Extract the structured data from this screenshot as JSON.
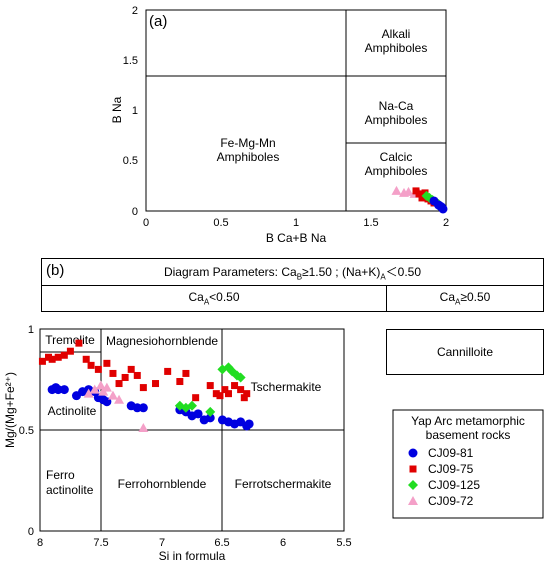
{
  "panel_a": {
    "tag": "(a)",
    "ylabel": "B Na",
    "xlabel": "B Ca+B Na",
    "x_ticks": [
      "0",
      "0.5",
      "1",
      "1.5",
      "2"
    ],
    "y_ticks": [
      "0",
      "0.5",
      "1",
      "1.5",
      "2"
    ],
    "region_fe_l1": "Fe-Mg-Mn",
    "region_fe_l2": "Amphiboles",
    "region_alk_l1": "Alkali",
    "region_alk_l2": "Amphiboles",
    "region_naca_l1": "Na-Ca",
    "region_naca_l2": "Amphiboles",
    "region_calcic_l1": "Calcic",
    "region_calcic_l2": "Amphiboles"
  },
  "panel_b": {
    "tag": "(b)",
    "params_prefix": "Diagram Parameters: Ca",
    "params_sub_b": "B",
    "params_mid": "≥1.50 ; (Na+K)",
    "params_sub_a": "A",
    "params_suffix": "＜0.50",
    "col_left_prefix": "Ca",
    "col_left_sub": "A",
    "col_left_suffix": "<0.50",
    "col_right_prefix": "Ca",
    "col_right_sub": "A",
    "col_right_suffix": "≥0.50",
    "cannilloite": "Cannilloite",
    "ylabel": "Mg/(Mg+Fe²⁺)",
    "xlabel": "Si in formula",
    "x_ticks": [
      "8",
      "7.5",
      "7",
      "6.5",
      "6",
      "5.5"
    ],
    "y_ticks": [
      "0",
      "0.5",
      "1"
    ],
    "region_tremolite": "Tremolite",
    "region_mghbl": "Magnesiohornblende",
    "region_actinolite": "Actinolite",
    "region_tscher": "Tschermakite",
    "region_ferroact_l1": "Ferro",
    "region_ferroact_l2": "actinolite",
    "region_ferrohbl": "Ferrohornblende",
    "region_ferrotscher": "Ferrotschermakite"
  },
  "legend": {
    "title_l1": "Yap Arc metamorphic",
    "title_l2": "basement rocks",
    "items": [
      {
        "label": "CJ09-81",
        "color": "#0000e0",
        "shape": "circle"
      },
      {
        "label": "CJ09-75",
        "color": "#e00000",
        "shape": "square"
      },
      {
        "label": "CJ09-125",
        "color": "#22dd22",
        "shape": "diamond"
      },
      {
        "label": "CJ09-72",
        "color": "#f4a0c8",
        "shape": "triangle"
      }
    ]
  },
  "chart_data": [
    {
      "type": "scatter",
      "title": "(a)",
      "xlabel": "B Ca+B Na",
      "ylabel": "B Na",
      "xlim": [
        0,
        2
      ],
      "ylim": [
        0,
        2
      ],
      "series": [
        {
          "name": "CJ09-72",
          "x": [
            1.67,
            1.72,
            1.75,
            1.79,
            1.82
          ],
          "y": [
            0.2,
            0.18,
            0.19,
            0.17,
            0.18
          ]
        },
        {
          "name": "CJ09-75",
          "x": [
            1.8,
            1.82,
            1.85,
            1.88,
            1.9,
            1.86,
            1.92,
            1.84
          ],
          "y": [
            0.2,
            0.17,
            0.15,
            0.12,
            0.1,
            0.18,
            0.08,
            0.13
          ]
        },
        {
          "name": "CJ09-125",
          "x": [
            1.87,
            1.89,
            1.91,
            1.93,
            1.95
          ],
          "y": [
            0.15,
            0.13,
            0.11,
            0.09,
            0.07
          ]
        },
        {
          "name": "CJ09-81",
          "x": [
            1.92,
            1.95,
            1.97,
            1.98,
            1.96
          ],
          "y": [
            0.1,
            0.06,
            0.04,
            0.02,
            0.05
          ]
        }
      ]
    },
    {
      "type": "scatter",
      "title": "(b)",
      "xlabel": "Si in formula",
      "ylabel": "Mg/(Mg+Fe²⁺)",
      "xlim": [
        8,
        5.5
      ],
      "ylim": [
        0,
        1
      ],
      "series": [
        {
          "name": "CJ09-81",
          "x": [
            7.9,
            7.87,
            7.85,
            7.8,
            7.7,
            7.65,
            7.6,
            7.55,
            7.52,
            7.48,
            7.45,
            7.25,
            7.2,
            7.15,
            6.85,
            6.8,
            6.75,
            6.7,
            6.65,
            6.6,
            6.5,
            6.45,
            6.4,
            6.35,
            6.3,
            6.28
          ],
          "y": [
            0.7,
            0.71,
            0.7,
            0.7,
            0.67,
            0.69,
            0.7,
            0.69,
            0.66,
            0.65,
            0.64,
            0.62,
            0.61,
            0.61,
            0.6,
            0.59,
            0.57,
            0.58,
            0.55,
            0.56,
            0.55,
            0.54,
            0.53,
            0.54,
            0.52,
            0.53
          ]
        },
        {
          "name": "CJ09-75",
          "x": [
            7.98,
            7.93,
            7.9,
            7.85,
            7.8,
            7.75,
            7.68,
            7.62,
            7.58,
            7.52,
            7.45,
            7.4,
            7.35,
            7.3,
            7.25,
            7.2,
            7.15,
            7.05,
            6.95,
            6.85,
            6.8,
            6.72,
            6.6,
            6.55,
            6.52,
            6.48,
            6.45,
            6.4,
            6.35,
            6.3,
            6.32
          ],
          "y": [
            0.84,
            0.86,
            0.85,
            0.86,
            0.87,
            0.89,
            0.93,
            0.85,
            0.82,
            0.8,
            0.83,
            0.78,
            0.73,
            0.76,
            0.8,
            0.77,
            0.71,
            0.73,
            0.79,
            0.74,
            0.78,
            0.66,
            0.72,
            0.68,
            0.67,
            0.7,
            0.68,
            0.72,
            0.7,
            0.68,
            0.66
          ]
        },
        {
          "name": "CJ09-125",
          "x": [
            6.5,
            6.45,
            6.42,
            6.38,
            6.35,
            6.85,
            6.8,
            6.75,
            6.6
          ],
          "y": [
            0.8,
            0.81,
            0.79,
            0.77,
            0.76,
            0.62,
            0.61,
            0.62,
            0.59
          ]
        },
        {
          "name": "CJ09-72",
          "x": [
            7.6,
            7.55,
            7.5,
            7.48,
            7.45,
            7.4,
            7.35,
            7.15
          ],
          "y": [
            0.68,
            0.7,
            0.72,
            0.69,
            0.71,
            0.67,
            0.65,
            0.51
          ]
        }
      ]
    }
  ]
}
